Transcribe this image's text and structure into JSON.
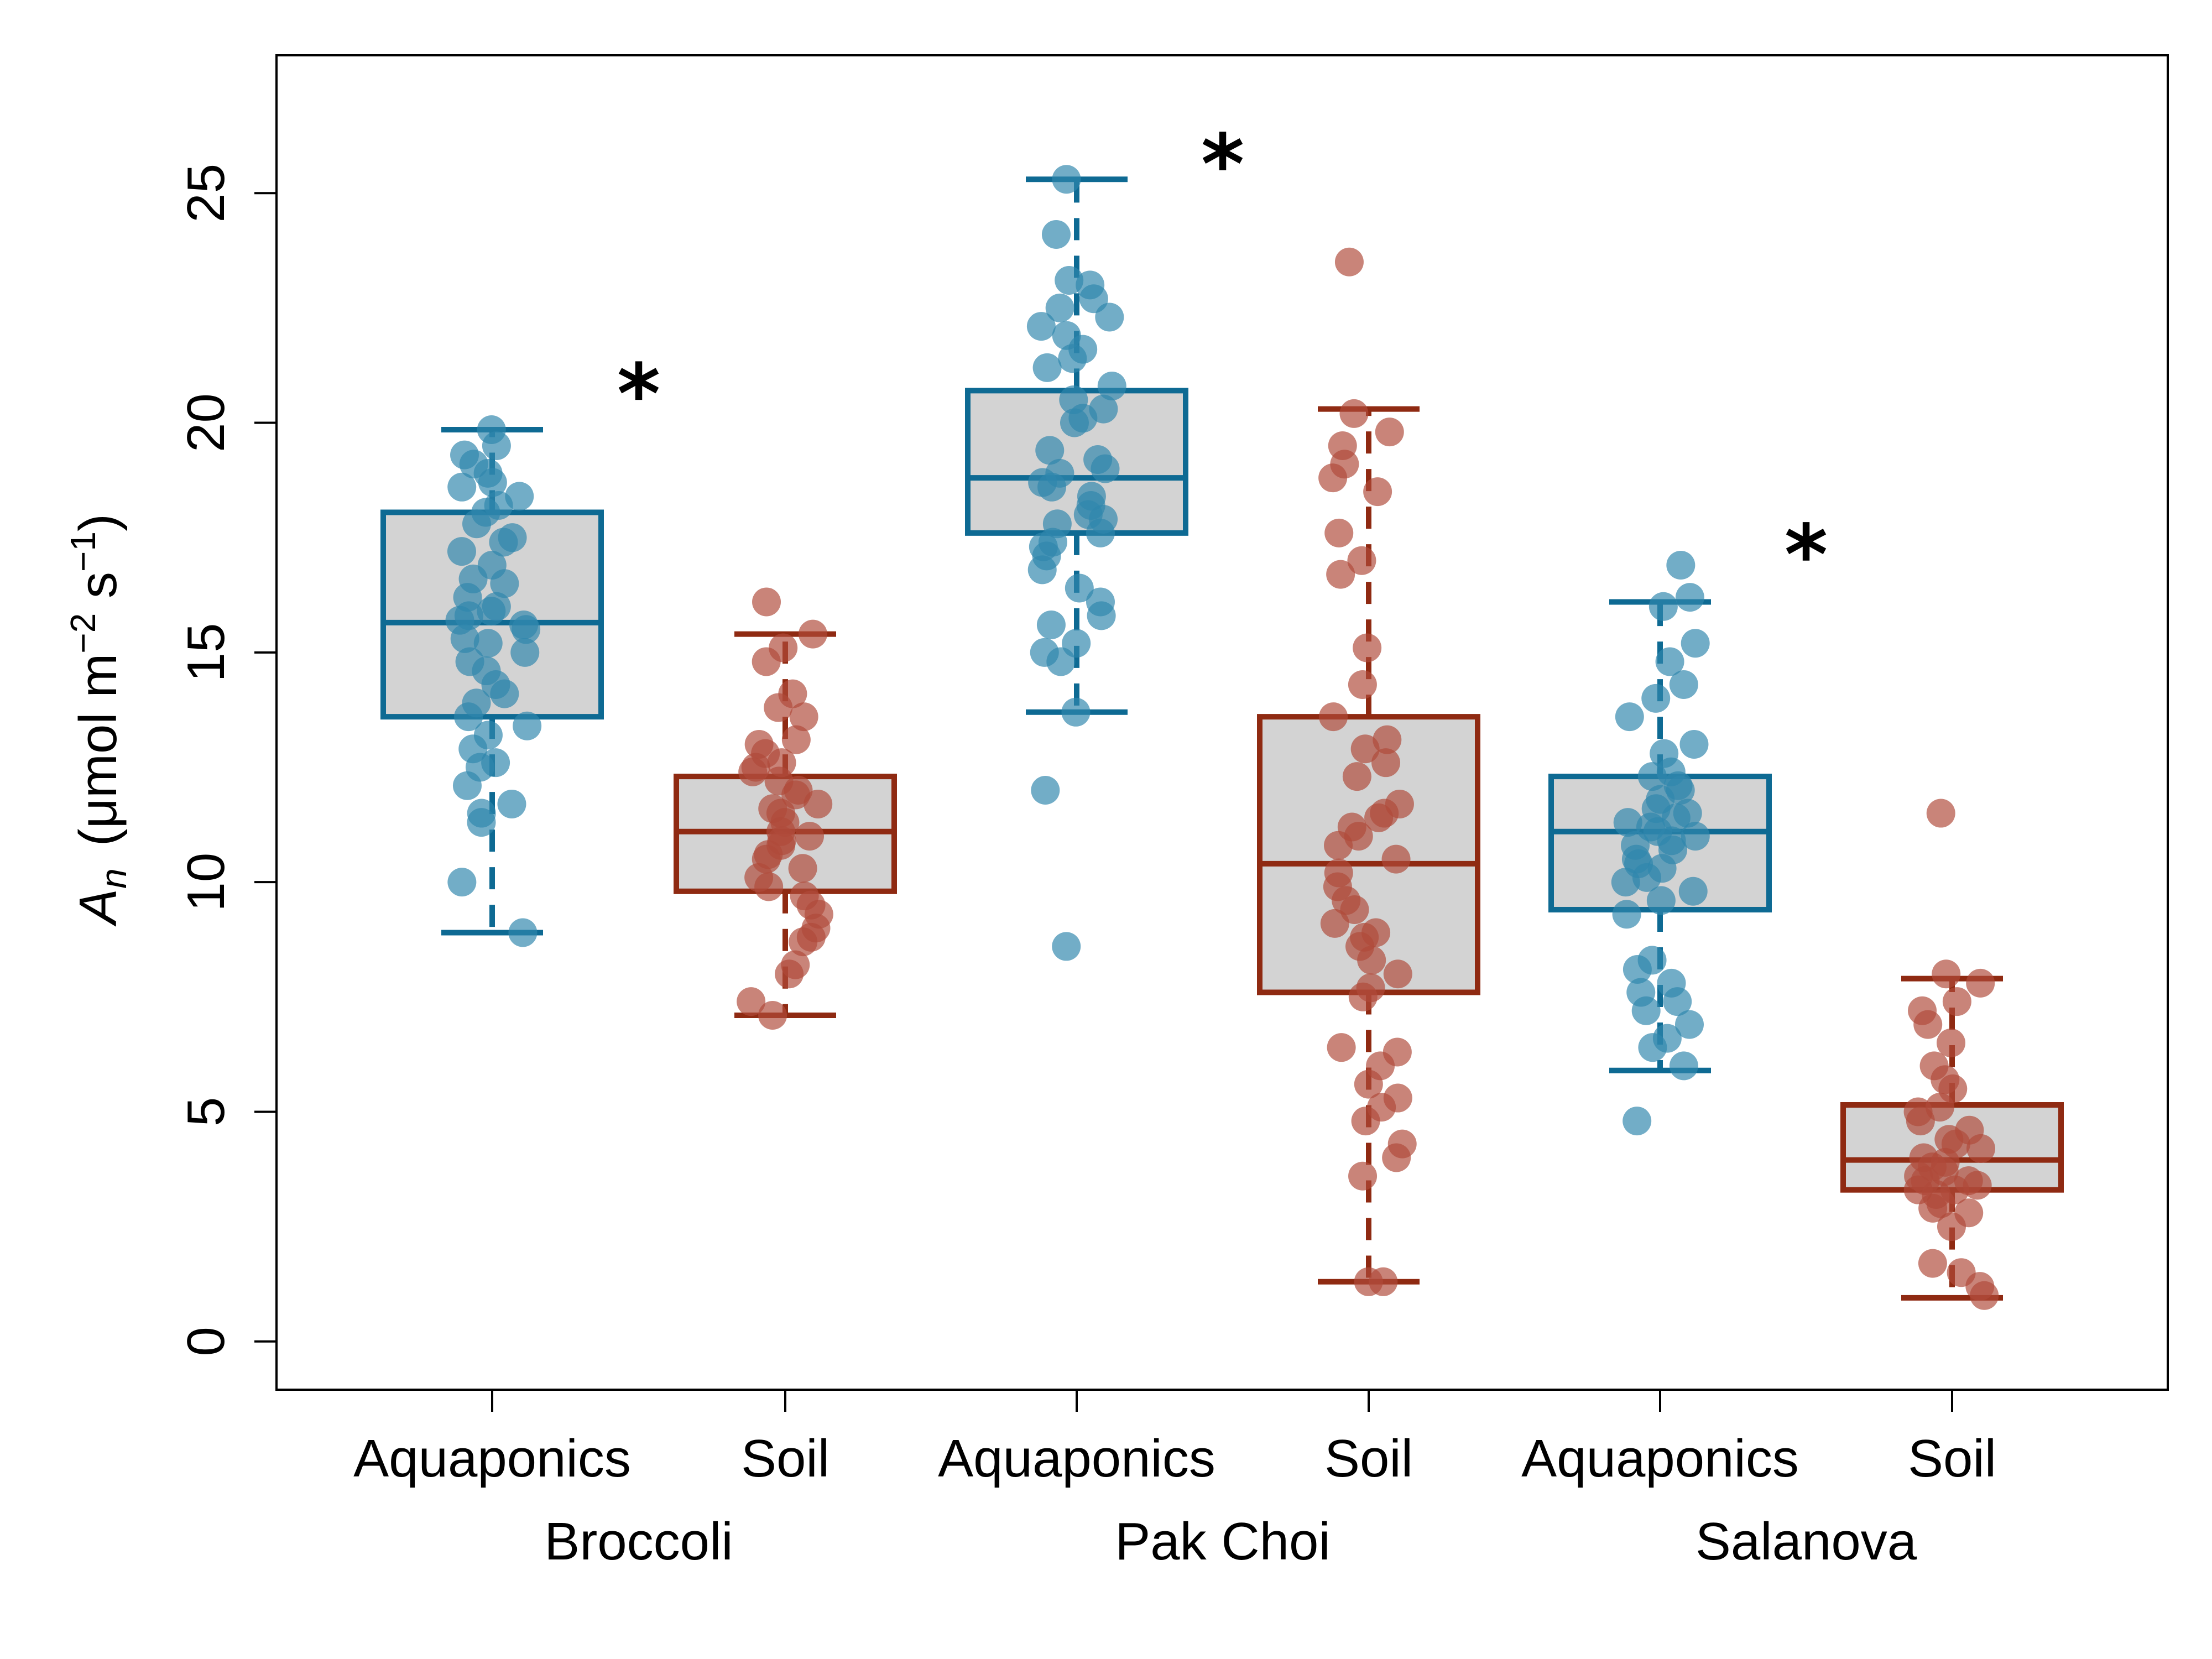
{
  "colors": {
    "aquaponics": "#0e6a93",
    "soil": "#8f2a12",
    "box_fill": "#d3d3d3",
    "aquaponics_point": "#2f86ad",
    "soil_point": "#b04a3a"
  },
  "chart_data": {
    "type": "box",
    "ylabel": {
      "symbol": "A",
      "subscript": "n",
      "unit_prefix": "(μmol m",
      "unit_exp1": "−2",
      "unit_mid": " s",
      "unit_exp2": "−1",
      "unit_suffix": ")"
    },
    "ylim": [
      -1.05,
      28.0
    ],
    "yticks": [
      "0",
      "5",
      "10",
      "15",
      "20",
      "25"
    ],
    "xticks": [
      "Aquaponics",
      "Soil",
      "Aquaponics",
      "Soil",
      "Aquaponics",
      "Soil"
    ],
    "groups": [
      "Broccoli",
      "Pak Choi",
      "Salanova"
    ],
    "significance": [
      "*",
      "*",
      "*"
    ],
    "significance_y": [
      20.9,
      25.9,
      17.4
    ],
    "boxes": [
      {
        "group": "Broccoli",
        "treatment": "Aquaponics",
        "whisker_low": 8.9,
        "q1": 13.6,
        "median": 15.65,
        "q3": 18.05,
        "whisker_high": 19.85,
        "points": [
          19.85,
          19.5,
          19.3,
          19.1,
          18.9,
          18.7,
          18.6,
          18.4,
          18.2,
          18.05,
          17.8,
          17.5,
          17.4,
          17.2,
          16.9,
          16.6,
          16.5,
          16.2,
          16.0,
          15.9,
          15.8,
          15.7,
          15.6,
          15.5,
          15.3,
          15.2,
          15.0,
          14.8,
          14.6,
          14.3,
          14.1,
          13.9,
          13.6,
          13.4,
          13.2,
          12.9,
          12.6,
          12.5,
          12.1,
          11.7,
          11.5,
          11.3,
          10.0,
          8.9
        ]
      },
      {
        "group": "Broccoli",
        "treatment": "Soil",
        "whisker_low": 7.1,
        "q1": 9.8,
        "median": 11.1,
        "q3": 12.3,
        "whisker_high": 15.4,
        "points": [
          16.1,
          15.4,
          15.1,
          14.8,
          14.1,
          13.8,
          13.6,
          13.1,
          13.0,
          12.8,
          12.6,
          12.5,
          12.4,
          12.2,
          12.0,
          11.9,
          11.7,
          11.6,
          11.5,
          11.3,
          11.1,
          11.0,
          10.9,
          10.8,
          10.6,
          10.5,
          10.3,
          10.1,
          9.9,
          9.7,
          9.5,
          9.3,
          9.0,
          8.8,
          8.7,
          8.2,
          8.0,
          7.4,
          7.1
        ]
      },
      {
        "group": "Pak Choi",
        "treatment": "Aquaponics",
        "whisker_low": 13.7,
        "q1": 17.6,
        "median": 18.8,
        "q3": 20.7,
        "whisker_high": 25.3,
        "points": [
          25.3,
          24.1,
          23.1,
          23.0,
          22.7,
          22.5,
          22.3,
          22.1,
          21.9,
          21.6,
          21.4,
          21.2,
          20.8,
          20.5,
          20.3,
          20.1,
          20.0,
          19.4,
          19.2,
          19.0,
          18.9,
          18.7,
          18.6,
          18.4,
          18.2,
          18.0,
          17.9,
          17.8,
          17.6,
          17.4,
          17.3,
          17.1,
          16.8,
          16.4,
          16.1,
          15.8,
          15.6,
          15.2,
          15.0,
          14.8,
          13.7,
          12.0,
          8.6
        ]
      },
      {
        "group": "Pak Choi",
        "treatment": "Soil",
        "whisker_low": 1.3,
        "q1": 7.6,
        "median": 10.4,
        "q3": 13.6,
        "whisker_high": 20.3,
        "points": [
          23.5,
          20.2,
          19.8,
          19.5,
          19.1,
          18.8,
          18.5,
          17.6,
          17.0,
          16.7,
          15.1,
          14.3,
          13.6,
          13.1,
          12.9,
          12.6,
          12.3,
          11.7,
          11.5,
          11.4,
          11.2,
          11.0,
          10.8,
          10.5,
          10.2,
          9.9,
          9.6,
          9.4,
          9.1,
          8.9,
          8.8,
          8.6,
          8.3,
          8.0,
          7.7,
          7.5,
          6.4,
          6.3,
          6.0,
          5.6,
          5.3,
          5.1,
          4.8,
          4.3,
          4.0,
          3.6,
          1.3,
          1.3
        ]
      },
      {
        "group": "Salanova",
        "treatment": "Aquaponics",
        "whisker_low": 5.9,
        "q1": 9.4,
        "median": 11.1,
        "q3": 12.3,
        "whisker_high": 16.1,
        "points": [
          16.9,
          16.2,
          16.0,
          15.2,
          14.8,
          14.3,
          14.0,
          13.6,
          13.0,
          12.8,
          12.4,
          12.3,
          12.1,
          12.0,
          11.8,
          11.6,
          11.5,
          11.4,
          11.3,
          11.2,
          11.1,
          11.0,
          10.9,
          10.8,
          10.7,
          10.5,
          10.4,
          10.3,
          10.1,
          10.0,
          9.8,
          9.6,
          9.3,
          8.3,
          8.1,
          7.8,
          7.6,
          7.4,
          7.2,
          6.9,
          6.6,
          6.4,
          6.0,
          4.8
        ]
      },
      {
        "group": "Salanova",
        "treatment": "Soil",
        "whisker_low": 0.95,
        "q1": 3.3,
        "median": 3.95,
        "q3": 5.15,
        "whisker_high": 7.9,
        "points": [
          11.5,
          8.0,
          7.8,
          7.4,
          7.2,
          6.9,
          6.5,
          6.0,
          5.7,
          5.5,
          5.1,
          5.0,
          4.8,
          4.6,
          4.4,
          4.3,
          4.2,
          4.0,
          3.9,
          3.8,
          3.7,
          3.6,
          3.5,
          3.5,
          3.4,
          3.3,
          3.3,
          3.2,
          3.0,
          2.9,
          2.8,
          2.5,
          1.7,
          1.5,
          1.2,
          1.0
        ]
      }
    ]
  }
}
